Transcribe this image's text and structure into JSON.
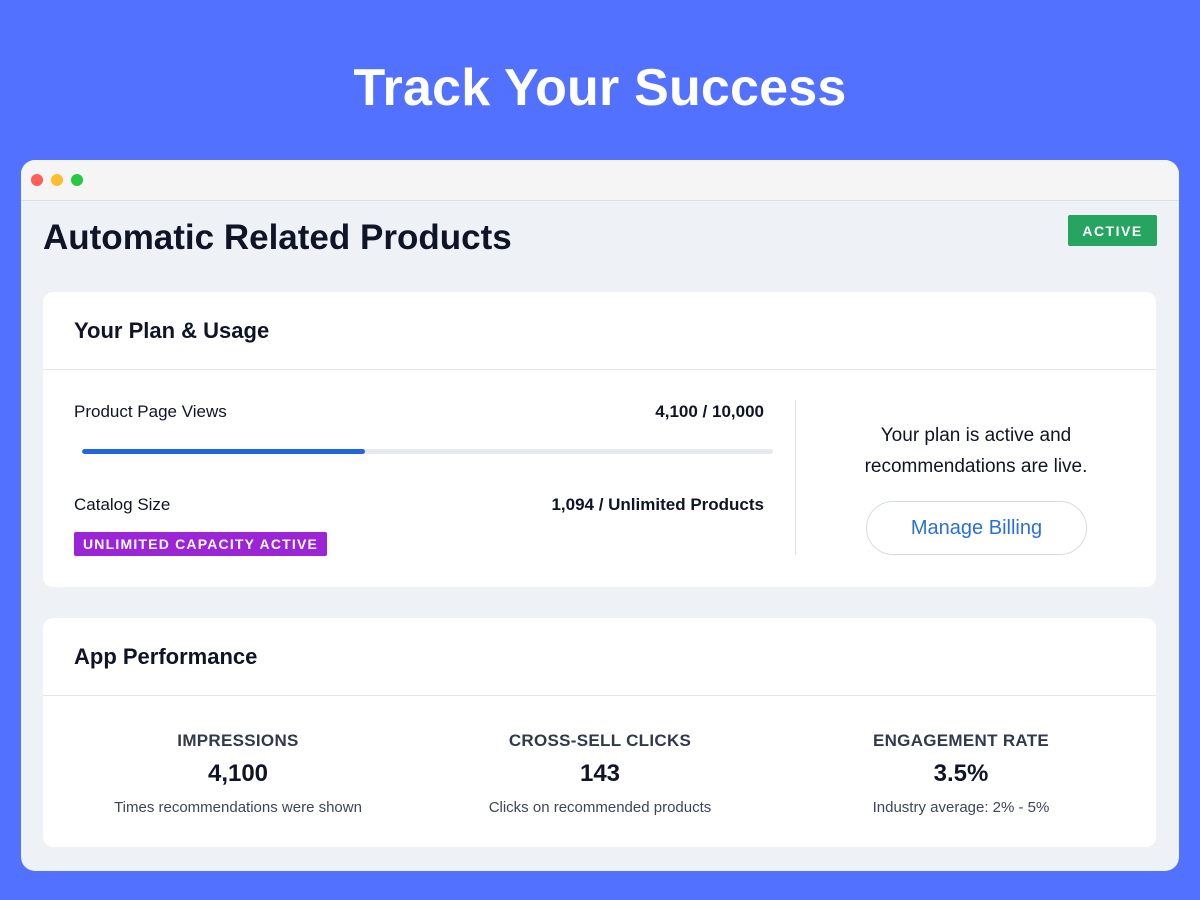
{
  "hero": {
    "title": "Track Your Success"
  },
  "app": {
    "title": "Automatic Related Products",
    "status": "ACTIVE",
    "status_color": "#25a55f"
  },
  "plan": {
    "heading": "Your Plan & Usage",
    "views_label": "Product Page Views",
    "views_value": "4,100 / 10,000",
    "views_progress": 0.41,
    "catalog_label": "Catalog Size",
    "catalog_value": "1,094 / Unlimited Products",
    "capacity_badge": "UNLIMITED CAPACITY ACTIVE",
    "message_line1": "Your plan is active and",
    "message_line2": "recommendations are live.",
    "billing_button": "Manage Billing"
  },
  "performance": {
    "heading": "App Performance",
    "metrics": [
      {
        "label": "IMPRESSIONS",
        "value": "4,100",
        "sub": "Times recommendations were shown"
      },
      {
        "label": "CROSS-SELL CLICKS",
        "value": "143",
        "sub": "Clicks on recommended products"
      },
      {
        "label": "ENGAGEMENT RATE",
        "value": "3.5%",
        "sub": "Industry average: 2% - 5%"
      }
    ]
  },
  "colors": {
    "background": "#5271ff",
    "accent": "#1f66e0",
    "capacity_badge": "#9a24d6"
  }
}
